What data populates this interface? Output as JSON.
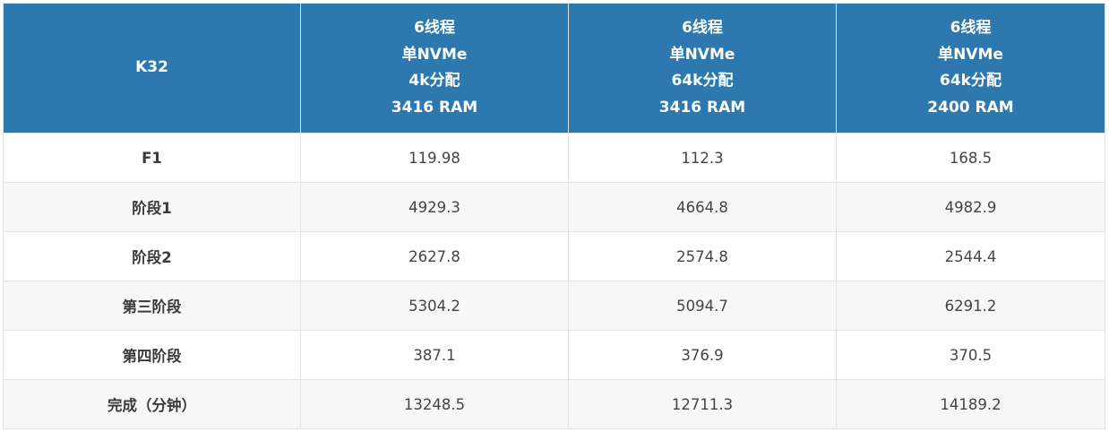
{
  "table": {
    "corner": "K32",
    "columns": [
      [
        "6线程",
        "单NVMe",
        "4k分配",
        "3416 RAM"
      ],
      [
        "6线程",
        "单NVMe",
        "64k分配",
        "3416 RAM"
      ],
      [
        "6线程",
        "单NVMe",
        "64k分配",
        "2400 RAM"
      ]
    ],
    "rows": [
      {
        "label": "F1",
        "values": [
          "119.98",
          "112.3",
          "168.5"
        ]
      },
      {
        "label": "阶段1",
        "values": [
          "4929.3",
          "4664.8",
          "4982.9"
        ]
      },
      {
        "label": "阶段2",
        "values": [
          "2627.8",
          "2574.8",
          "2544.4"
        ]
      },
      {
        "label": "第三阶段",
        "values": [
          "5304.2",
          "5094.7",
          "6291.2"
        ]
      },
      {
        "label": "第四阶段",
        "values": [
          "387.1",
          "376.9",
          "370.5"
        ]
      },
      {
        "label": "完成（分钟）",
        "values": [
          "13248.5",
          "12711.3",
          "14189.2"
        ]
      }
    ],
    "colors": {
      "header": "#2e78b0",
      "stripe": "#f7f7f7"
    }
  }
}
